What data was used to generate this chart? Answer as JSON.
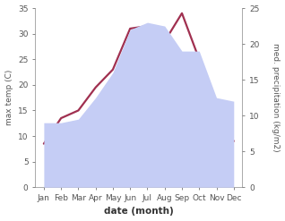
{
  "months": [
    "Jan",
    "Feb",
    "Mar",
    "Apr",
    "May",
    "Jun",
    "Jul",
    "Aug",
    "Sep",
    "Oct",
    "Nov",
    "Dec"
  ],
  "month_x": [
    0,
    1,
    2,
    3,
    4,
    5,
    6,
    7,
    8,
    9,
    10,
    11
  ],
  "temperature": [
    8.5,
    13.5,
    15.0,
    19.5,
    23.0,
    31.0,
    31.5,
    28.5,
    34.0,
    25.0,
    14.0,
    9.0
  ],
  "precipitation": [
    9.0,
    9.0,
    9.5,
    12.5,
    16.0,
    22.0,
    23.0,
    22.5,
    19.0,
    19.0,
    12.5,
    12.0
  ],
  "temp_color": "#a03050",
  "precip_fill_color": "#c5cdf5",
  "temp_ylim": [
    0,
    35
  ],
  "precip_ylim": [
    0,
    25
  ],
  "temp_yticks": [
    0,
    5,
    10,
    15,
    20,
    25,
    30,
    35
  ],
  "precip_yticks": [
    0,
    5,
    10,
    15,
    20,
    25
  ],
  "xlabel": "date (month)",
  "ylabel_left": "max temp (C)",
  "ylabel_right": "med. precipitation (kg/m2)",
  "bg_color": "#ffffff",
  "line_width": 1.6,
  "axis_color": "#888888",
  "tick_label_color": "#555555",
  "tick_label_size": 6.5,
  "ylabel_size": 6.5,
  "xlabel_size": 7.5
}
